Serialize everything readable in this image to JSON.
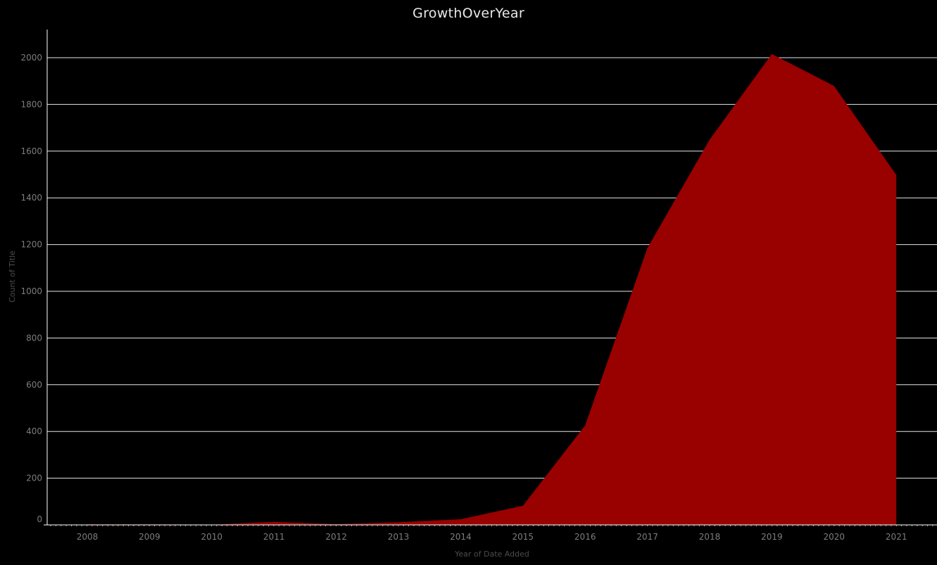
{
  "chart_data": {
    "type": "area",
    "title": "GrowthOverYear",
    "xlabel": "Year of Date Added",
    "ylabel": "Count of Title",
    "x": [
      "2008",
      "2009",
      "2010",
      "2011",
      "2012",
      "2013",
      "2014",
      "2015",
      "2016",
      "2017",
      "2018",
      "2019",
      "2020",
      "2021"
    ],
    "series": [
      {
        "values": [
          2,
          2,
          1,
          13,
          3,
          11,
          24,
          82,
          426,
          1185,
          1649,
          2016,
          1879,
          1498
        ]
      }
    ],
    "yticks": [
      0,
      200,
      400,
      600,
      800,
      1000,
      1200,
      1400,
      1600,
      1800,
      2000
    ],
    "ylim": [
      0,
      2120
    ],
    "grid": true,
    "colors": {
      "fill": "#990000",
      "background": "#000000",
      "grid": "#ffffff"
    }
  }
}
